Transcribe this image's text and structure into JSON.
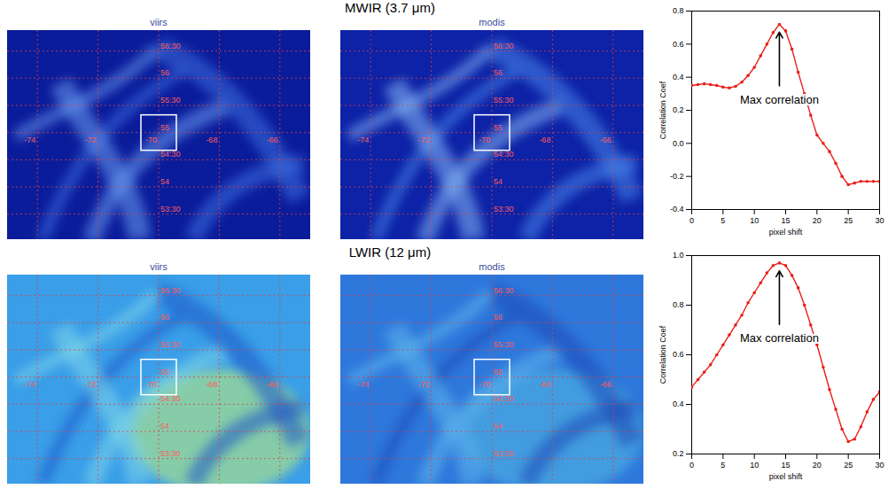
{
  "chart_data": [
    {
      "type": "line",
      "xlabel": "pixel shift",
      "ylabel": "Correlation Coef",
      "annotations": [
        "Max correlation"
      ],
      "x": [
        0,
        1,
        2,
        3,
        4,
        5,
        6,
        7,
        8,
        9,
        10,
        11,
        12,
        13,
        14,
        15,
        16,
        17,
        18,
        19,
        20,
        21,
        22,
        23,
        24,
        25,
        26,
        27,
        28,
        29,
        30
      ],
      "values": [
        0.35,
        0.355,
        0.36,
        0.355,
        0.35,
        0.34,
        0.335,
        0.345,
        0.37,
        0.41,
        0.46,
        0.53,
        0.6,
        0.67,
        0.72,
        0.68,
        0.57,
        0.43,
        0.3,
        0.17,
        0.05,
        0.0,
        -0.05,
        -0.12,
        -0.2,
        -0.25,
        -0.24,
        -0.23,
        -0.23,
        -0.23,
        -0.23
      ],
      "xlim": [
        0,
        30
      ],
      "ylim": [
        -0.4,
        0.8
      ],
      "xticks": [
        0,
        5,
        10,
        15,
        20,
        25,
        30
      ],
      "yticks": [
        -0.4,
        -0.2,
        {
          "value": 0,
          "label": "0.0"
        },
        0.2,
        0.4,
        0.6,
        0.8
      ],
      "color": "#e8201a",
      "marker": "dot",
      "line_style": "solid"
    },
    {
      "type": "line",
      "xlabel": "pixel shift",
      "ylabel": "Correlation Coef",
      "annotations": [
        "Max correlation"
      ],
      "x": [
        0,
        1,
        2,
        3,
        4,
        5,
        6,
        7,
        8,
        9,
        10,
        11,
        12,
        13,
        14,
        15,
        16,
        17,
        18,
        19,
        20,
        21,
        22,
        23,
        24,
        25,
        26,
        27,
        28,
        29,
        30
      ],
      "values": [
        0.47,
        0.5,
        0.53,
        0.56,
        0.6,
        0.64,
        0.68,
        0.72,
        0.76,
        0.81,
        0.85,
        0.89,
        0.93,
        0.96,
        0.97,
        0.96,
        0.92,
        0.87,
        0.8,
        0.72,
        0.64,
        0.55,
        0.46,
        0.38,
        0.3,
        0.25,
        0.26,
        0.31,
        0.37,
        0.42,
        0.45
      ],
      "xlim": [
        0,
        30
      ],
      "ylim": [
        0.2,
        1.0
      ],
      "xticks": [
        0,
        5,
        10,
        15,
        20,
        25,
        30
      ],
      "yticks": [
        0.2,
        0.4,
        0.6,
        0.8,
        {
          "value": 1,
          "label": "1.0"
        }
      ],
      "color": "#e8201a",
      "marker": "dot",
      "line_style": "solid"
    }
  ],
  "rows": [
    {
      "title": "MWIR (3.7 μm)",
      "images": [
        {
          "label": "viirs"
        },
        {
          "label": "modis"
        }
      ]
    },
    {
      "title": "LWIR (12 μm)",
      "images": [
        {
          "label": "viirs"
        },
        {
          "label": "modis"
        }
      ]
    }
  ],
  "map_grid": {
    "lat_labels": [
      "56:30",
      "56",
      "55:30",
      "55",
      "54:30",
      "54",
      "53:30"
    ],
    "lon_labels": [
      "-74",
      "-72",
      "-70",
      "-68",
      "-66"
    ]
  }
}
